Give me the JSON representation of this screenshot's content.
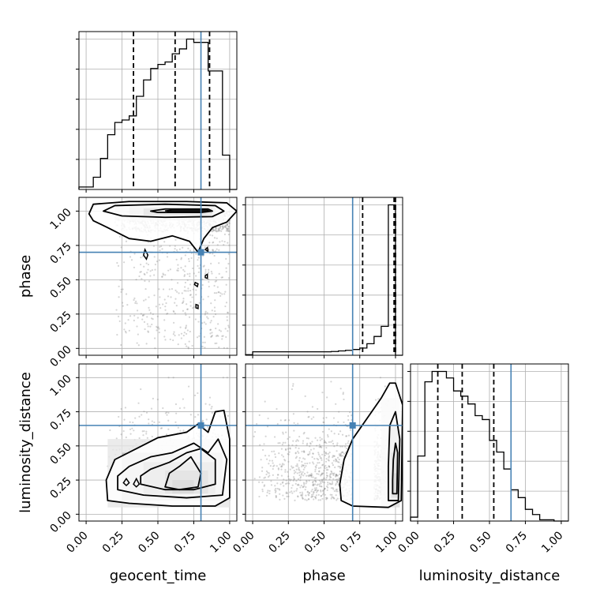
{
  "chart_data": {
    "type": "corner",
    "parameters": [
      "geocent_time",
      "phase",
      "luminosity_distance"
    ],
    "axis_labels": {
      "x": [
        "geocent_time",
        "phase",
        "luminosity_distance"
      ],
      "y": [
        "phase",
        "luminosity_distance"
      ]
    },
    "tick_labels": [
      "0.00",
      "0.25",
      "0.50",
      "0.75",
      "1.00"
    ],
    "tick_values": [
      0,
      0.25,
      0.5,
      0.75,
      1.0
    ],
    "truths": [
      0.8,
      0.7,
      0.65
    ],
    "truth_color": "#4682b4",
    "grid": true,
    "histograms": [
      {
        "parameter": "geocent_time",
        "xlim": [
          -0.05,
          1.05
        ],
        "bin_edges": [
          -0.05,
          0.0,
          0.05,
          0.1,
          0.15,
          0.2,
          0.25,
          0.3,
          0.35,
          0.4,
          0.45,
          0.5,
          0.55,
          0.6,
          0.65,
          0.7,
          0.75,
          0.8,
          0.85,
          0.9,
          0.95,
          1.0,
          1.05
        ],
        "counts": [
          0.3,
          0.3,
          1.5,
          3.8,
          6.7,
          8.2,
          8.5,
          9.0,
          11.4,
          13.4,
          14.8,
          15.3,
          15.6,
          16.6,
          17.2,
          18.4,
          18.0,
          18.0,
          14.5,
          14.5,
          4.2,
          0
        ],
        "quantiles": [
          0.33,
          0.62,
          0.86
        ]
      },
      {
        "parameter": "phase",
        "xlim": [
          -0.05,
          1.05
        ],
        "bin_edges": [
          -0.05,
          0.0,
          0.05,
          0.1,
          0.15,
          0.2,
          0.25,
          0.3,
          0.35,
          0.4,
          0.45,
          0.5,
          0.55,
          0.6,
          0.65,
          0.7,
          0.75,
          0.8,
          0.85,
          0.9,
          0.95,
          1.0,
          1.05
        ],
        "counts": [
          0.2,
          1.2,
          1.2,
          1.2,
          1.2,
          1.2,
          1.2,
          1.2,
          1.2,
          1.2,
          1.2,
          1.2,
          1.3,
          1.5,
          1.7,
          2.0,
          2.5,
          4.0,
          6.5,
          10.0,
          52.0,
          0
        ],
        "quantiles": [
          0.77,
          0.99,
          1.0
        ]
      },
      {
        "parameter": "luminosity_distance",
        "xlim": [
          -0.05,
          1.05
        ],
        "bin_edges": [
          -0.05,
          0.0,
          0.05,
          0.1,
          0.15,
          0.2,
          0.25,
          0.3,
          0.35,
          0.4,
          0.45,
          0.5,
          0.55,
          0.6,
          0.65,
          0.7,
          0.75,
          0.8,
          0.85,
          0.9,
          0.95,
          1.0,
          1.05
        ],
        "counts": [
          0.3,
          5.0,
          10.7,
          11.5,
          11.5,
          11.0,
          10.0,
          9.6,
          9.0,
          8.1,
          7.8,
          6.2,
          5.3,
          4.0,
          2.4,
          1.8,
          0.9,
          0.5,
          0.1,
          0.1,
          0,
          0
        ],
        "quantiles": [
          0.14,
          0.31,
          0.53
        ]
      }
    ],
    "joint_2d": [
      {
        "x": "geocent_time",
        "y": "phase",
        "density_peak": [
          0.75,
          1.0
        ]
      },
      {
        "x": "geocent_time",
        "y": "luminosity_distance",
        "density_peak": [
          0.7,
          0.22
        ]
      },
      {
        "x": "phase",
        "y": "luminosity_distance",
        "density_peak": [
          1.0,
          0.2
        ]
      }
    ]
  }
}
